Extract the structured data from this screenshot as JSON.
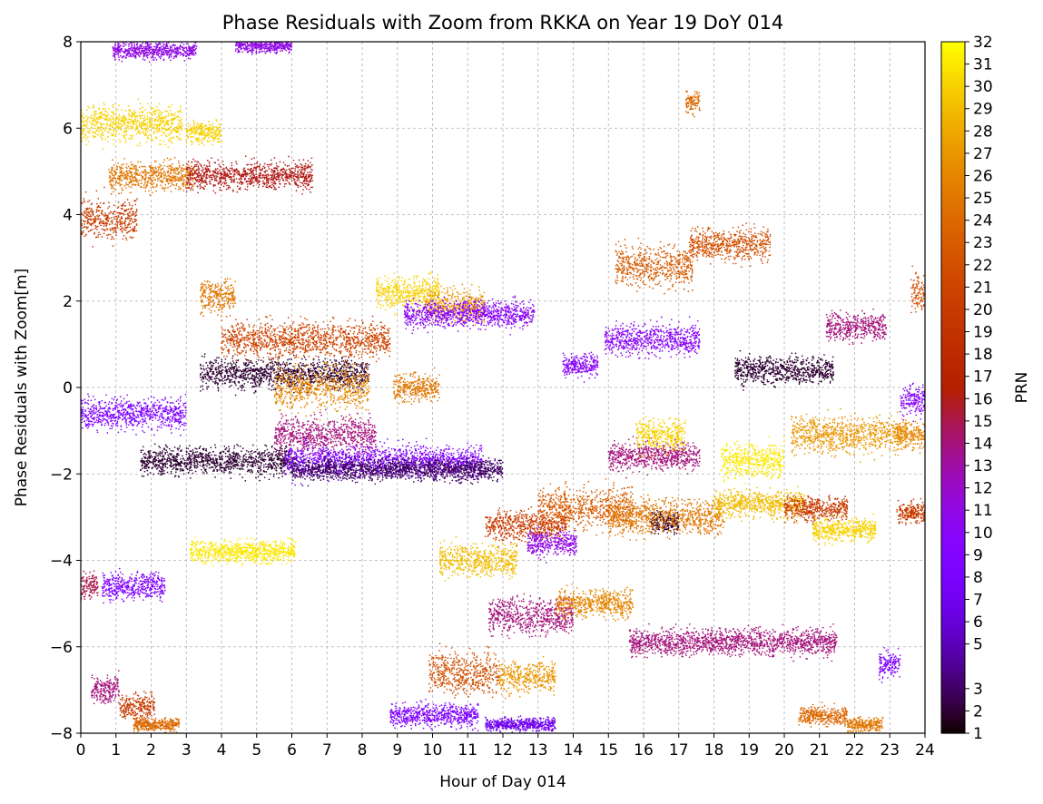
{
  "chart_data": {
    "type": "scatter",
    "title": "Phase Residuals with Zoom from RKKA on Year 19 DoY 014",
    "xlabel": "Hour of Day 014",
    "ylabel": "Phase Residuals with Zoom[m]",
    "xlim": [
      0,
      24
    ],
    "ylim": [
      -8,
      8
    ],
    "x_ticks": [
      "0",
      "1",
      "2",
      "3",
      "4",
      "5",
      "6",
      "7",
      "8",
      "9",
      "10",
      "11",
      "12",
      "13",
      "14",
      "15",
      "16",
      "17",
      "18",
      "19",
      "20",
      "21",
      "22",
      "23",
      "24"
    ],
    "y_ticks": [
      "−8",
      "−6",
      "−4",
      "−2",
      "0",
      "2",
      "4",
      "6",
      "8"
    ],
    "grid": true,
    "colorbar": {
      "label": "PRN",
      "colormap": "gnuplot",
      "range": [
        1,
        32
      ],
      "ticks": [
        "1",
        "2",
        "3",
        "5",
        "6",
        "7",
        "8",
        "9",
        "10",
        "11",
        "12",
        "13",
        "14",
        "15",
        "16",
        "17",
        "18",
        "19",
        "20",
        "21",
        "22",
        "23",
        "24",
        "25",
        "26",
        "27",
        "28",
        "29",
        "30",
        "31",
        "32"
      ]
    },
    "series": [
      {
        "prn": 30,
        "x": [
          0.0,
          2.9
        ],
        "y_center": 6.1,
        "y_spread": 0.8
      },
      {
        "prn": 30,
        "x": [
          3.0,
          4.0
        ],
        "y_center": 5.9,
        "y_spread": 0.5
      },
      {
        "prn": 20,
        "x": [
          0.0,
          1.6
        ],
        "y_center": 3.9,
        "y_spread": 0.9
      },
      {
        "prn": 25,
        "x": [
          0.8,
          3.2
        ],
        "y_center": 4.9,
        "y_spread": 0.6
      },
      {
        "prn": 16,
        "x": [
          3.0,
          6.6
        ],
        "y_center": 4.9,
        "y_spread": 0.6
      },
      {
        "prn": 11,
        "x": [
          0.9,
          3.3
        ],
        "y_center": 7.8,
        "y_spread": 0.4
      },
      {
        "prn": 11,
        "x": [
          4.4,
          6.0
        ],
        "y_center": 7.9,
        "y_spread": 0.3
      },
      {
        "prn": 24,
        "x": [
          17.2,
          17.6
        ],
        "y_center": 6.6,
        "y_spread": 0.5
      },
      {
        "prn": 9,
        "x": [
          0.0,
          3.0
        ],
        "y_center": -0.6,
        "y_spread": 0.7
      },
      {
        "prn": 2,
        "x": [
          1.7,
          6.0
        ],
        "y_center": -1.7,
        "y_spread": 0.6
      },
      {
        "prn": 31,
        "x": [
          3.1,
          6.1
        ],
        "y_center": -3.8,
        "y_spread": 0.5
      },
      {
        "prn": 9,
        "x": [
          0.6,
          2.4
        ],
        "y_center": -4.6,
        "y_spread": 0.6
      },
      {
        "prn": 15,
        "x": [
          0.0,
          0.5
        ],
        "y_center": -4.6,
        "y_spread": 0.6
      },
      {
        "prn": 14,
        "x": [
          0.3,
          1.1
        ],
        "y_center": -7.0,
        "y_spread": 0.6
      },
      {
        "prn": 20,
        "x": [
          1.1,
          2.1
        ],
        "y_center": -7.4,
        "y_spread": 0.6
      },
      {
        "prn": 24,
        "x": [
          1.5,
          2.8
        ],
        "y_center": -7.8,
        "y_spread": 0.3
      },
      {
        "prn": 25,
        "x": [
          3.4,
          4.4
        ],
        "y_center": 2.1,
        "y_spread": 0.7
      },
      {
        "prn": 2,
        "x": [
          3.4,
          8.2
        ],
        "y_center": 0.3,
        "y_spread": 0.7
      },
      {
        "prn": 21,
        "x": [
          4.0,
          8.8
        ],
        "y_center": 1.1,
        "y_spread": 0.8
      },
      {
        "prn": 26,
        "x": [
          5.5,
          8.2
        ],
        "y_center": 0.0,
        "y_spread": 1.0
      },
      {
        "prn": 14,
        "x": [
          5.5,
          8.4
        ],
        "y_center": -1.1,
        "y_spread": 0.8
      },
      {
        "prn": 9,
        "x": [
          5.8,
          11.4
        ],
        "y_center": -1.7,
        "y_spread": 0.7
      },
      {
        "prn": 3,
        "x": [
          6.0,
          12.0
        ],
        "y_center": -1.9,
        "y_spread": 0.5
      },
      {
        "prn": 30,
        "x": [
          8.4,
          10.2
        ],
        "y_center": 2.2,
        "y_spread": 0.7
      },
      {
        "prn": 27,
        "x": [
          9.8,
          11.5
        ],
        "y_center": 1.9,
        "y_spread": 0.7
      },
      {
        "prn": 10,
        "x": [
          9.2,
          12.9
        ],
        "y_center": 1.7,
        "y_spread": 0.6
      },
      {
        "prn": 25,
        "x": [
          8.9,
          10.2
        ],
        "y_center": 0.0,
        "y_spread": 0.6
      },
      {
        "prn": 29,
        "x": [
          10.2,
          12.4
        ],
        "y_center": -4.0,
        "y_spread": 0.7
      },
      {
        "prn": 22,
        "x": [
          9.9,
          11.9
        ],
        "y_center": -6.6,
        "y_spread": 0.9
      },
      {
        "prn": 9,
        "x": [
          8.8,
          11.3
        ],
        "y_center": -7.6,
        "y_spread": 0.5
      },
      {
        "prn": 7,
        "x": [
          11.5,
          13.5
        ],
        "y_center": -7.8,
        "y_spread": 0.3
      },
      {
        "prn": 14,
        "x": [
          11.6,
          14.0
        ],
        "y_center": -5.3,
        "y_spread": 0.8
      },
      {
        "prn": 27,
        "x": [
          11.9,
          13.5
        ],
        "y_center": -6.7,
        "y_spread": 0.7
      },
      {
        "prn": 20,
        "x": [
          11.5,
          13.8
        ],
        "y_center": -3.2,
        "y_spread": 0.7
      },
      {
        "prn": 11,
        "x": [
          12.7,
          14.1
        ],
        "y_center": -3.6,
        "y_spread": 0.6
      },
      {
        "prn": 23,
        "x": [
          13.0,
          15.7
        ],
        "y_center": -2.8,
        "y_spread": 0.9
      },
      {
        "prn": 26,
        "x": [
          13.5,
          15.7
        ],
        "y_center": -5.0,
        "y_spread": 0.6
      },
      {
        "prn": 10,
        "x": [
          13.7,
          14.7
        ],
        "y_center": 0.5,
        "y_spread": 0.5
      },
      {
        "prn": 10,
        "x": [
          14.9,
          17.6
        ],
        "y_center": 1.1,
        "y_spread": 0.7
      },
      {
        "prn": 23,
        "x": [
          15.2,
          17.4
        ],
        "y_center": 2.8,
        "y_spread": 0.9
      },
      {
        "prn": 22,
        "x": [
          17.3,
          19.6
        ],
        "y_center": 3.3,
        "y_spread": 0.7
      },
      {
        "prn": 14,
        "x": [
          15.0,
          17.6
        ],
        "y_center": -1.6,
        "y_spread": 0.6
      },
      {
        "prn": 30,
        "x": [
          15.8,
          17.2
        ],
        "y_center": -1.1,
        "y_spread": 0.7
      },
      {
        "prn": 2,
        "x": [
          16.2,
          17.0
        ],
        "y_center": -3.1,
        "y_spread": 0.5
      },
      {
        "prn": 25,
        "x": [
          15.0,
          18.3
        ],
        "y_center": -3.0,
        "y_spread": 0.8
      },
      {
        "prn": 14,
        "x": [
          15.6,
          21.5
        ],
        "y_center": -5.9,
        "y_spread": 0.6
      },
      {
        "prn": 2,
        "x": [
          18.6,
          21.4
        ],
        "y_center": 0.4,
        "y_spread": 0.6
      },
      {
        "prn": 31,
        "x": [
          18.2,
          20.0
        ],
        "y_center": -1.7,
        "y_spread": 0.8
      },
      {
        "prn": 29,
        "x": [
          18.0,
          20.6
        ],
        "y_center": -2.7,
        "y_spread": 0.6
      },
      {
        "prn": 20,
        "x": [
          20.0,
          21.8
        ],
        "y_center": -2.8,
        "y_spread": 0.5
      },
      {
        "prn": 30,
        "x": [
          20.8,
          22.6
        ],
        "y_center": -3.3,
        "y_spread": 0.5
      },
      {
        "prn": 27,
        "x": [
          20.2,
          23.5
        ],
        "y_center": -1.1,
        "y_spread": 0.8
      },
      {
        "prn": 14,
        "x": [
          21.2,
          22.9
        ],
        "y_center": 1.4,
        "y_spread": 0.6
      },
      {
        "prn": 24,
        "x": [
          20.4,
          21.8
        ],
        "y_center": -7.6,
        "y_spread": 0.4
      },
      {
        "prn": 25,
        "x": [
          21.8,
          22.8
        ],
        "y_center": -7.8,
        "y_spread": 0.3
      },
      {
        "prn": 9,
        "x": [
          22.7,
          23.3
        ],
        "y_center": -6.4,
        "y_spread": 0.6
      },
      {
        "prn": 10,
        "x": [
          23.3,
          24.0
        ],
        "y_center": -0.3,
        "y_spread": 0.7
      },
      {
        "prn": 26,
        "x": [
          23.2,
          24.0
        ],
        "y_center": -1.1,
        "y_spread": 0.6
      },
      {
        "prn": 20,
        "x": [
          23.2,
          24.0
        ],
        "y_center": -2.9,
        "y_spread": 0.5
      },
      {
        "prn": 22,
        "x": [
          23.6,
          24.0
        ],
        "y_center": 2.2,
        "y_spread": 0.8
      }
    ]
  }
}
